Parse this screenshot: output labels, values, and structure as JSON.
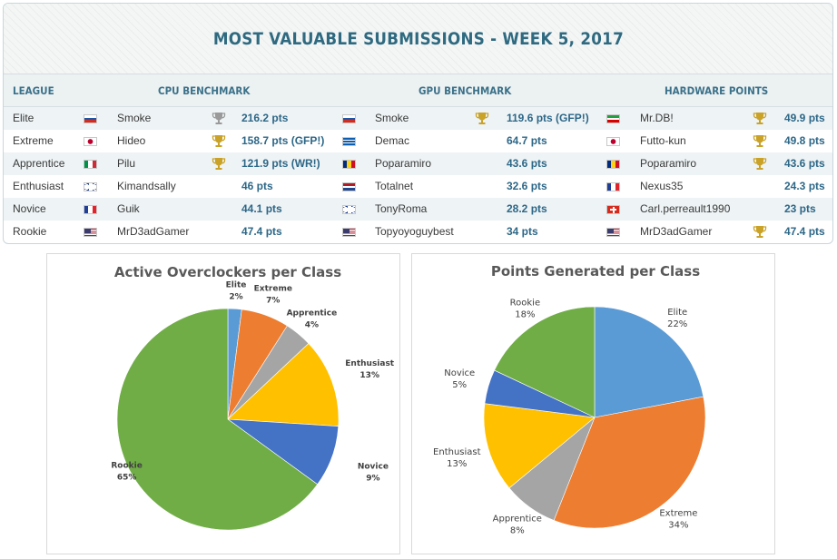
{
  "board": {
    "title": "MOST VALUABLE SUBMISSIONS - WEEK 5, 2017",
    "headers": {
      "league": "LEAGUE",
      "cpu": "CPU BENCHMARK",
      "gpu": "GPU BENCHMARK",
      "hw": "HARDWARE POINTS"
    },
    "rows": [
      {
        "league": "Elite",
        "cpu": {
          "flag": "ru",
          "name": "Smoke",
          "trophy": "silver",
          "pts": "216.2 pts"
        },
        "gpu": {
          "flag": "ru",
          "name": "Smoke",
          "trophy": "gold",
          "pts": "119.6 pts (GFP!)"
        },
        "hw": {
          "flag": "ir",
          "name": "Mr.DB!",
          "trophy": "gold",
          "pts": "49.9 pts"
        }
      },
      {
        "league": "Extreme",
        "cpu": {
          "flag": "jp",
          "name": "Hideo",
          "trophy": "gold",
          "pts": "158.7 pts (GFP!)"
        },
        "gpu": {
          "flag": "gr",
          "name": "Demac",
          "trophy": "",
          "pts": "64.7 pts"
        },
        "hw": {
          "flag": "jp",
          "name": "Futto-kun",
          "trophy": "gold",
          "pts": "49.8 pts"
        }
      },
      {
        "league": "Apprentice",
        "cpu": {
          "flag": "it",
          "name": "Pilu",
          "trophy": "gold",
          "pts": "121.9 pts (WR!)"
        },
        "gpu": {
          "flag": "ro",
          "name": "Poparamiro",
          "trophy": "",
          "pts": "43.6 pts"
        },
        "hw": {
          "flag": "ro",
          "name": "Poparamiro",
          "trophy": "gold",
          "pts": "43.6 pts"
        }
      },
      {
        "league": "Enthusiast",
        "cpu": {
          "flag": "gb",
          "name": "Kimandsally",
          "trophy": "",
          "pts": "46 pts"
        },
        "gpu": {
          "flag": "nl",
          "name": "Totalnet",
          "trophy": "",
          "pts": "32.6 pts"
        },
        "hw": {
          "flag": "fr",
          "name": "Nexus35",
          "trophy": "",
          "pts": "24.3 pts"
        }
      },
      {
        "league": "Novice",
        "cpu": {
          "flag": "fr",
          "name": "Guik",
          "trophy": "",
          "pts": "44.1 pts"
        },
        "gpu": {
          "flag": "gb",
          "name": "TonyRoma",
          "trophy": "",
          "pts": "28.2 pts"
        },
        "hw": {
          "flag": "ch",
          "name": "Carl.perreault1990",
          "trophy": "",
          "pts": "23 pts"
        }
      },
      {
        "league": "Rookie",
        "cpu": {
          "flag": "us",
          "name": "MrD3adGamer",
          "trophy": "",
          "pts": "47.4 pts"
        },
        "gpu": {
          "flag": "us",
          "name": "Topyoyoguybest",
          "trophy": "",
          "pts": "34 pts"
        },
        "hw": {
          "flag": "us",
          "name": "MrD3adGamer",
          "trophy": "gold",
          "pts": "47.4 pts"
        }
      }
    ]
  },
  "colors": {
    "Elite": "#5b9bd5",
    "Extreme": "#ed7d31",
    "Apprentice": "#a5a5a5",
    "Enthusiast": "#ffc000",
    "Novice": "#4472c4",
    "Rookie": "#70ad47",
    "trophy_gold": "#c9a227",
    "trophy_silver": "#9a9a9a"
  },
  "chart_data": [
    {
      "type": "pie",
      "title": "Active Overclockers per Class",
      "categories": [
        "Elite",
        "Extreme",
        "Apprentice",
        "Enthusiast",
        "Novice",
        "Rookie"
      ],
      "values": [
        2,
        7,
        4,
        13,
        9,
        65
      ],
      "labels": [
        "2%",
        "7%",
        "4%",
        "13%",
        "9%",
        "65%"
      ]
    },
    {
      "type": "pie",
      "title": "Points Generated per Class",
      "categories": [
        "Elite",
        "Extreme",
        "Apprentice",
        "Enthusiast",
        "Novice",
        "Rookie"
      ],
      "values": [
        22,
        34,
        8,
        13,
        5,
        18
      ],
      "labels": [
        "22%",
        "34%",
        "8%",
        "13%",
        "5%",
        "18%"
      ]
    }
  ]
}
